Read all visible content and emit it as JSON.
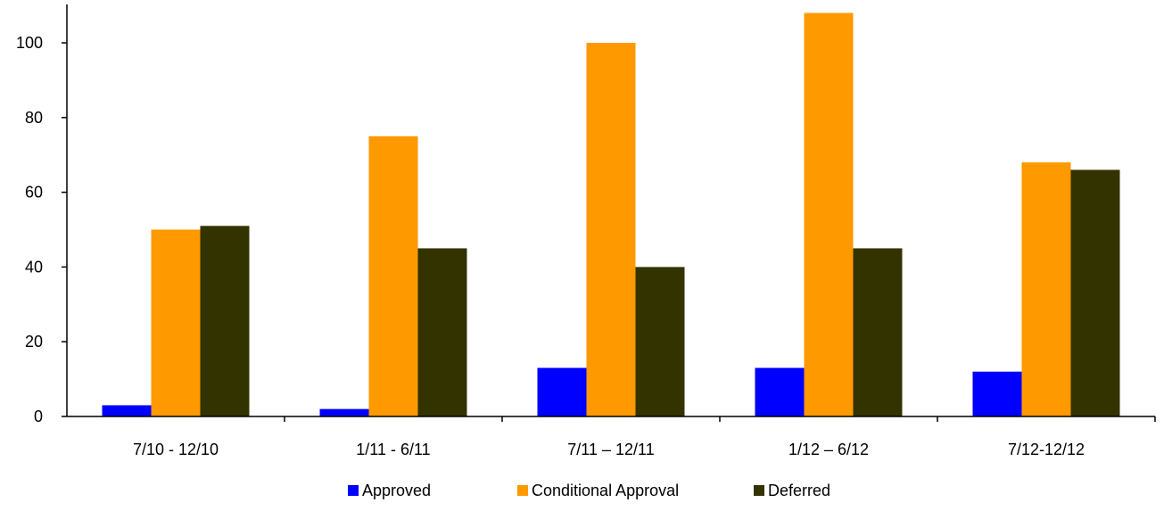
{
  "chart_data": {
    "type": "bar",
    "title": "",
    "xlabel": "",
    "ylabel": "",
    "categories": [
      "7/10 - 12/10",
      "1/11 - 6/11",
      "7/11 – 12/11",
      "1/12 – 6/12",
      "7/12-12/12"
    ],
    "series": [
      {
        "name": "Approved",
        "color": "#0000ff",
        "values": [
          3,
          2,
          13,
          13,
          12
        ]
      },
      {
        "name": "Conditional Approval",
        "color": "#ff9900",
        "values": [
          50,
          75,
          100,
          108,
          68
        ]
      },
      {
        "name": "Deferred",
        "color": "#333300",
        "values": [
          51,
          45,
          40,
          45,
          66
        ]
      }
    ],
    "ylim": [
      0,
      110
    ],
    "yticks": [
      0,
      20,
      40,
      60,
      80,
      100
    ],
    "grid": false,
    "legend_position": "bottom"
  }
}
